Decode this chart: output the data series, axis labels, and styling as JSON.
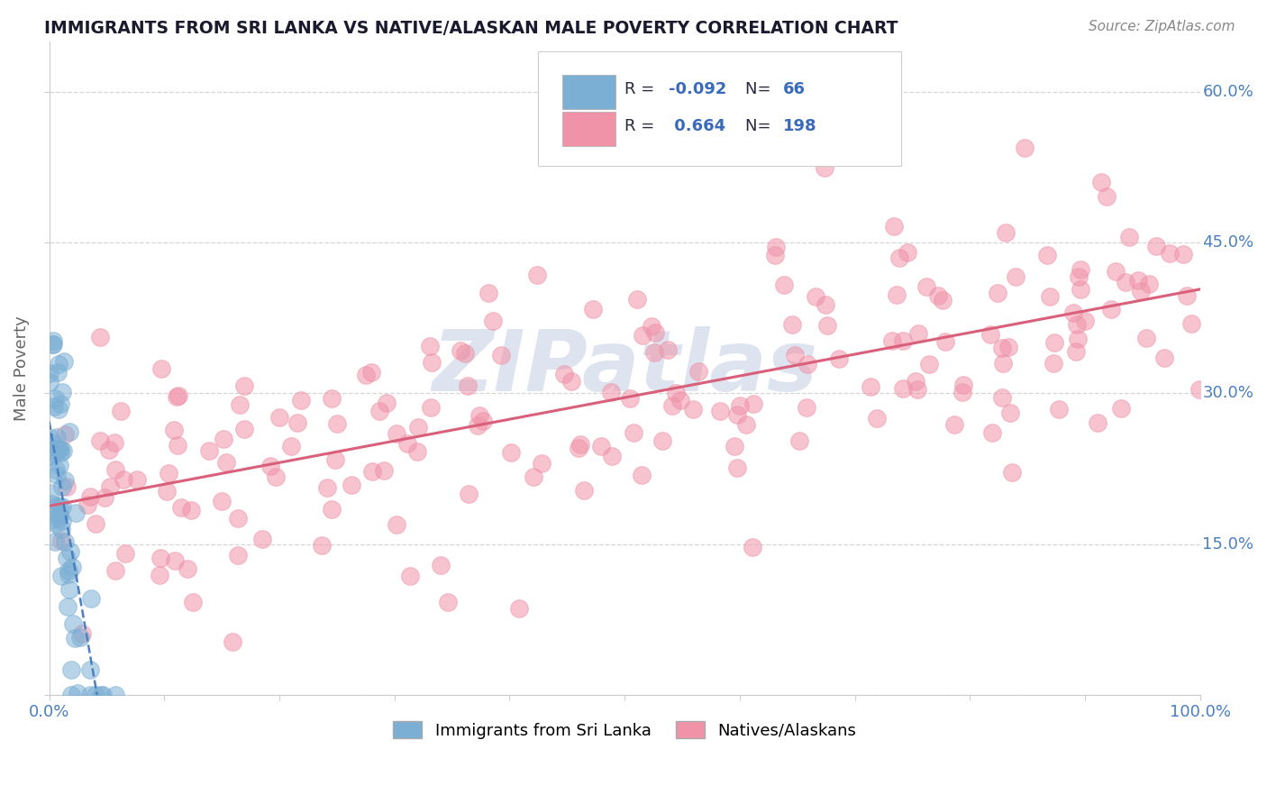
{
  "title": "IMMIGRANTS FROM SRI LANKA VS NATIVE/ALASKAN MALE POVERTY CORRELATION CHART",
  "source_text": "Source: ZipAtlas.com",
  "ylabel": "Male Poverty",
  "x_min": 0.0,
  "x_max": 1.0,
  "y_min": 0.0,
  "y_max": 0.65,
  "R_sri_lanka": -0.092,
  "N_sri_lanka": 66,
  "R_native": 0.664,
  "N_native": 198,
  "scatter_color_sri_lanka": "#7bafd4",
  "scatter_color_native": "#f093a8",
  "trend_color_sri_lanka": "#4a7fc1",
  "trend_color_native": "#d95f7a",
  "background_color": "#ffffff",
  "grid_color": "#cccccc",
  "title_color": "#1a1a2e",
  "watermark_text": "ZIPatlas",
  "watermark_color": "#dde4ef",
  "tick_color": "#4a7fc1",
  "label_color": "#666666",
  "legend_border_color": "#cccccc",
  "legend_text_dark": "#2a2a3e",
  "legend_text_blue": "#3a6bba"
}
